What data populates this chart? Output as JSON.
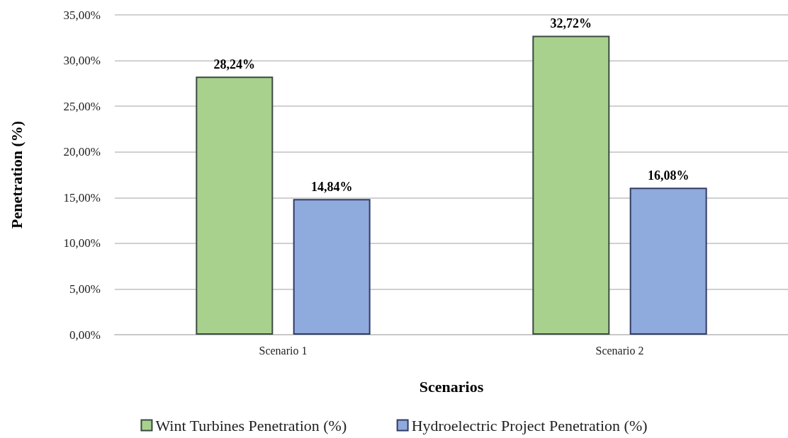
{
  "chart_data": {
    "type": "bar",
    "xlabel": "Scenarios",
    "ylabel": "Penetration (%)",
    "categories": [
      "Scenario 1",
      "Scenario 2"
    ],
    "series": [
      {
        "name": "Wint Turbines Penetration (%)",
        "color": "#a9d18e",
        "values": [
          28.24,
          32.72
        ],
        "value_labels": [
          "28,24%",
          "32,72%"
        ]
      },
      {
        "name": "Hydroelectric Project Penetration (%)",
        "color": "#8faadc",
        "values": [
          14.84,
          16.08
        ],
        "value_labels": [
          "14,84%",
          "16,08%"
        ]
      }
    ],
    "ylim": [
      0,
      35
    ],
    "yticks": [
      {
        "value": 0,
        "label": "0,00%"
      },
      {
        "value": 5,
        "label": "5,00%"
      },
      {
        "value": 10,
        "label": "10,00%"
      },
      {
        "value": 15,
        "label": "15,00%"
      },
      {
        "value": 20,
        "label": "20,00%"
      },
      {
        "value": 25,
        "label": "25,00%"
      },
      {
        "value": 30,
        "label": "30,00%"
      },
      {
        "value": 35,
        "label": "35,00%"
      }
    ],
    "grid": "y",
    "legend": "bottom"
  }
}
